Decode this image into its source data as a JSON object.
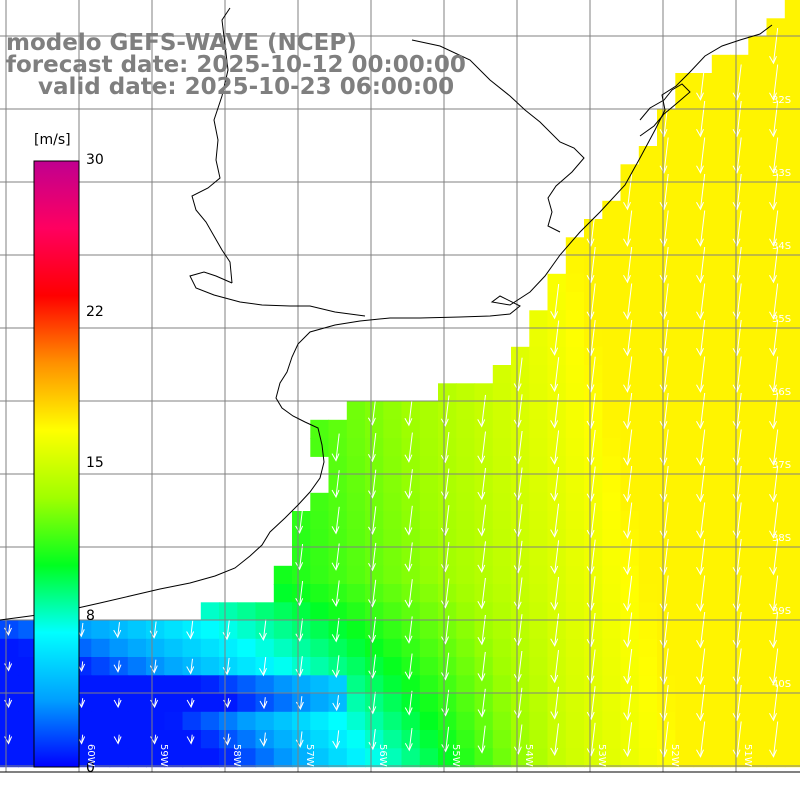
{
  "title": {
    "line1": "modelo GEFS-WAVE (NCEP)",
    "line2": "forecast date: 2025-10-12 00:00:00",
    "line3": "    valid date: 2025-10-23 06:00:00"
  },
  "colorbar": {
    "unit": "[m/s]",
    "ticks": [
      "30",
      "22",
      "15",
      "8",
      "0"
    ],
    "tick_values": [
      30,
      22,
      15,
      8,
      0
    ],
    "range": [
      0,
      30
    ],
    "stops": [
      "#0000ff",
      "#00a0ff",
      "#00ffff",
      "#00ff20",
      "#a0ff00",
      "#ffff00",
      "#ff9000",
      "#ff0000",
      "#ff0060",
      "#c00090"
    ]
  },
  "map": {
    "lat_labels": [
      "32S",
      "33S",
      "34S",
      "35S",
      "36S",
      "37S",
      "38S",
      "39S",
      "40S"
    ],
    "lat_values": [
      -32,
      -33,
      -34,
      -35,
      -36,
      -37,
      -38,
      -39,
      -40
    ],
    "lon_labels": [
      "60W",
      "59W",
      "58W",
      "57W",
      "56W",
      "55W",
      "54W",
      "53W",
      "52W",
      "51W"
    ],
    "lon_values": [
      -60,
      -59,
      -58,
      -57,
      -56,
      -55,
      -54,
      -53,
      -52,
      -51
    ],
    "land_color": "#ffffff",
    "grid_color": "#808080",
    "coast_color": "#000000",
    "arrow_color": "#ffffff"
  }
}
